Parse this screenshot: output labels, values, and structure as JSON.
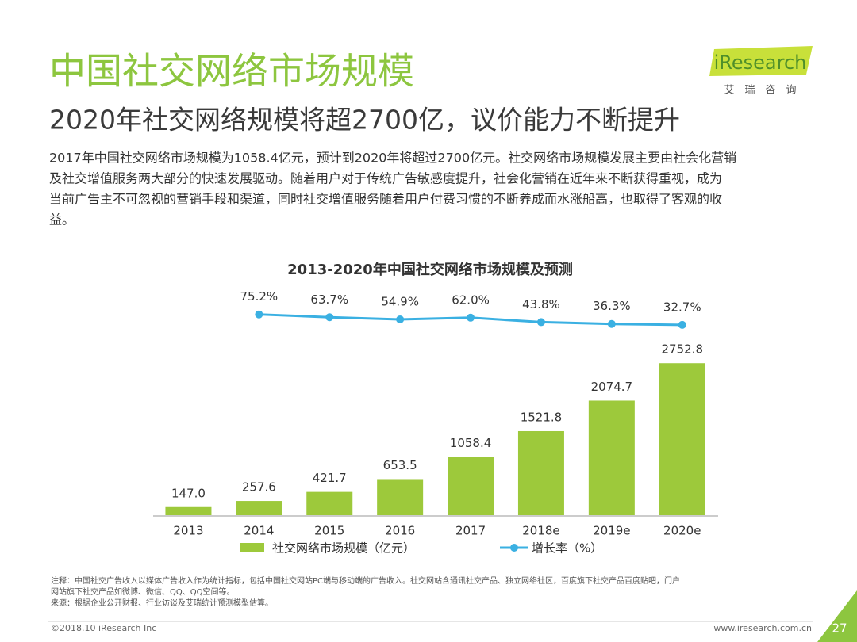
{
  "header": {
    "title": "中国社交网络市场规模",
    "subtitle": "2020年社交网络规模将超2700亿，议价能力不断提升",
    "logo": "iResearch",
    "logo_sub": "艾　瑞　咨　询"
  },
  "body": [
    "2017年中国社交网络市场规模为1058.4亿元，预计到2020年将超过2700亿元。社交网络市场规模发展主要由社会化营销",
    "及社交增值服务两大部分的快速发展驱动。随着用户对于传统广告敏感度提升，社会化营销在近年来不断获得重视，成为",
    "当前广告主不可忽视的营销手段和渠道，同时社交增值服务随着用户付费习惯的不断养成而水涨船高，也取得了客观的收",
    "益。"
  ],
  "chart_data": {
    "type": "bar_line",
    "title": "2013-2020年中国社交网络市场规模及预测",
    "categories": [
      "2013",
      "2014",
      "2015",
      "2016",
      "2017",
      "2018e",
      "2019e",
      "2020e"
    ],
    "series": [
      {
        "name": "社交网络市场规模（亿元）",
        "type": "bar",
        "color": "#9dc93b",
        "values": [
          147.0,
          257.6,
          421.7,
          653.5,
          1058.4,
          1521.8,
          2074.7,
          2752.8
        ],
        "value_labels": [
          "147.0",
          "257.6",
          "421.7",
          "653.5",
          "1058.4",
          "1521.8",
          "2074.7",
          "2752.8"
        ]
      },
      {
        "name": "增长率（%）",
        "type": "line",
        "axis": "y2",
        "color": "#3ab0e2",
        "values": [
          null,
          75.2,
          63.7,
          54.9,
          62.0,
          43.8,
          36.3,
          32.7
        ],
        "value_labels": [
          null,
          "75.2%",
          "63.7%",
          "54.9%",
          "62.0%",
          "43.8%",
          "36.3%",
          "32.7%"
        ]
      }
    ],
    "ylim": [
      0,
      3000
    ],
    "y2lim": [
      0,
      100
    ],
    "legend": "bottom"
  },
  "notes": [
    "注释：中国社交广告收入以媒体广告收入作为统计指标，包括中国社交网站PC端与移动端的广告收入。社交网站含通讯社交产品、独立网络社区，百度旗下社交产品百度贴吧，门户",
    "网站旗下社交产品如微博、微信、QQ、QQ空间等。",
    "来源：根据企业公开财报、行业访谈及艾瑞统计预测模型估算。"
  ],
  "footer": {
    "copyright": "©2018.10 iResearch Inc",
    "website": "www.iresearch.com.cn",
    "page": "27"
  }
}
